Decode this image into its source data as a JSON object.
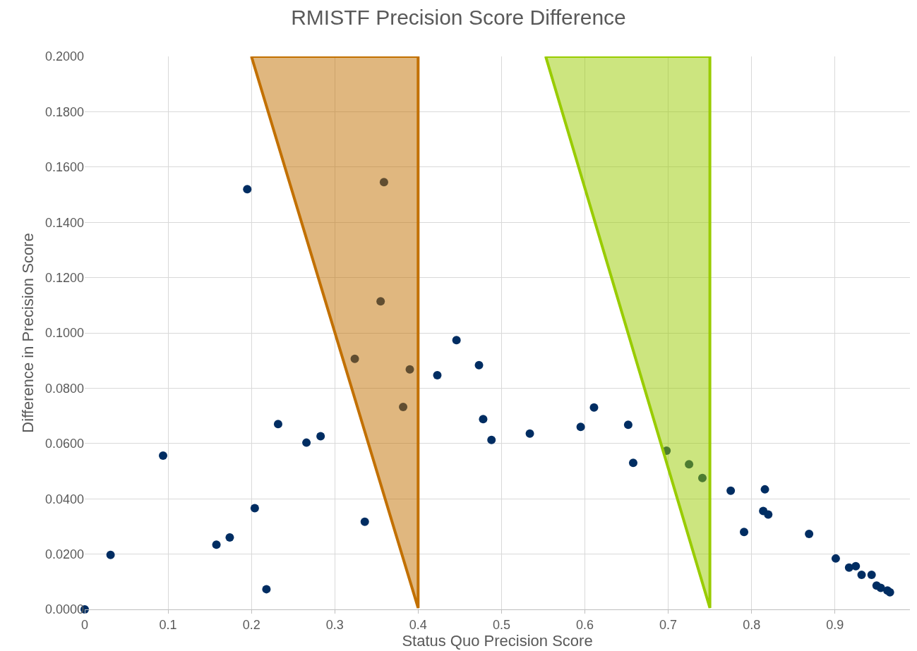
{
  "chart_data": {
    "type": "scatter",
    "title": "RMISTF Precision Score Difference",
    "xlabel": "Status Quo Precision Score",
    "ylabel": "Difference in Precision Score",
    "xlim": [
      0,
      0.99
    ],
    "xticks": [
      0,
      0.1,
      0.2,
      0.3,
      0.4,
      0.5,
      0.6,
      0.7,
      0.8,
      0.9
    ],
    "ylim": [
      0,
      0.2
    ],
    "yticks": [
      {
        "value": 0,
        "label": "0.0000"
      },
      {
        "value": 0.02,
        "label": "0.0200"
      },
      {
        "value": 0.04,
        "label": "0.0400"
      },
      {
        "value": 0.06,
        "label": "0.0600"
      },
      {
        "value": 0.08,
        "label": "0.0800"
      },
      {
        "value": 0.1,
        "label": "0.1000"
      },
      {
        "value": 0.12,
        "label": "0.1200"
      },
      {
        "value": 0.14,
        "label": "0.1400"
      },
      {
        "value": 0.16,
        "label": "0.1600"
      },
      {
        "value": 0.18,
        "label": "0.1800"
      },
      {
        "value": 0.2,
        "label": "0.2000"
      }
    ],
    "grid": true,
    "series": [
      {
        "marker": "circle",
        "color": "#002d62",
        "x": [
          0,
          0.031,
          0.094,
          0.158,
          0.174,
          0.195,
          0.204,
          0.218,
          0.232,
          0.266,
          0.283,
          0.324,
          0.336,
          0.355,
          0.359,
          0.382,
          0.39,
          0.423,
          0.446,
          0.473,
          0.478,
          0.488,
          0.534,
          0.595,
          0.611,
          0.652,
          0.658,
          0.698,
          0.725,
          0.741,
          0.775,
          0.791,
          0.814,
          0.816,
          0.82,
          0.869,
          0.901,
          0.917,
          0.925,
          0.932,
          0.944,
          0.95,
          0.955,
          0.963,
          0.966
        ],
        "values": [
          0,
          0.0197,
          0.0556,
          0.0234,
          0.026,
          0.152,
          0.0366,
          0.0073,
          0.067,
          0.0603,
          0.0626,
          0.0906,
          0.0317,
          0.1114,
          0.1545,
          0.0732,
          0.0868,
          0.0847,
          0.0974,
          0.0883,
          0.0688,
          0.0613,
          0.0636,
          0.066,
          0.073,
          0.0668,
          0.053,
          0.0574,
          0.0525,
          0.0475,
          0.0429,
          0.028,
          0.0356,
          0.0434,
          0.0343,
          0.0273,
          0.0184,
          0.0151,
          0.0156,
          0.0125,
          0.0125,
          0.0086,
          0.0078,
          0.0068,
          0.0062
        ]
      },
      {
        "type": "area",
        "color": "#c27000",
        "x": [
          0.2,
          0.4,
          0.4,
          0.2
        ],
        "values": [
          0.2,
          0.2,
          0.0005,
          0.2
        ]
      },
      {
        "type": "area",
        "color": "#99cc00",
        "x": [
          0.553,
          0.75,
          0.75,
          0.553
        ],
        "values": [
          0.2,
          0.2,
          0.0005,
          0.2
        ]
      }
    ]
  }
}
